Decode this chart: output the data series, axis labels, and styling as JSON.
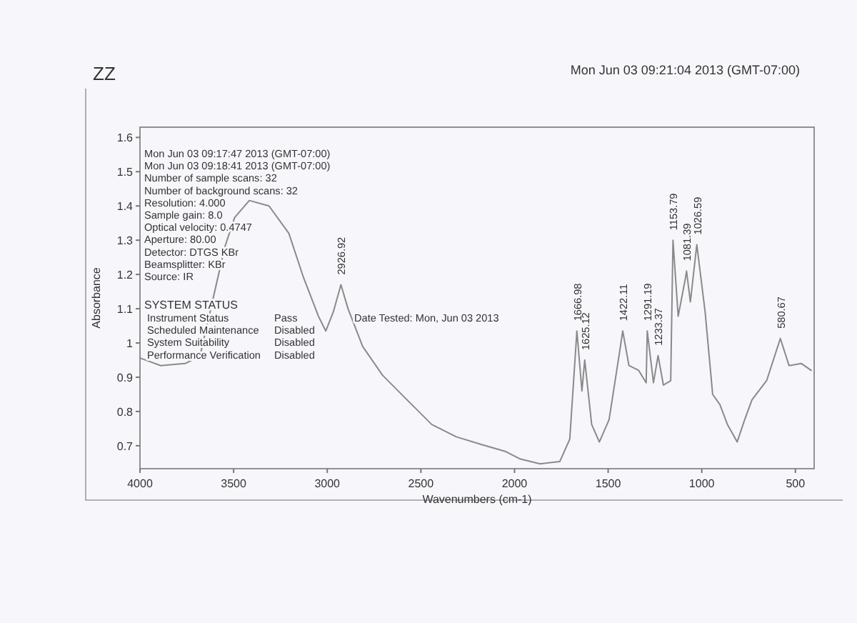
{
  "chart_data": {
    "type": "line",
    "title": "ZZ",
    "xlabel": "Wavenumbers (cm-1)",
    "ylabel": "Absorbance",
    "xlim": [
      4000,
      400
    ],
    "ylim": [
      0.633,
      1.63
    ],
    "xticks": [
      4000,
      3500,
      3000,
      2500,
      2000,
      1500,
      1000,
      500
    ],
    "yticks": [
      0.7,
      0.8,
      0.9,
      1.0,
      1.1,
      1.2,
      1.3,
      1.4,
      1.5,
      1.6
    ],
    "grid": false,
    "marker": "none",
    "line_style": "solid",
    "x": [
      4000,
      3889,
      3758,
      3679,
      3547,
      3495,
      3416,
      3311,
      3205,
      3126,
      3047,
      3008,
      2968,
      2926.92,
      2889,
      2811,
      2705,
      2574,
      2442,
      2311,
      2179,
      2047,
      1968,
      1863,
      1758,
      1705,
      1666.98,
      1640,
      1625.12,
      1588,
      1547,
      1495,
      1442,
      1422.11,
      1389,
      1337,
      1297,
      1291.19,
      1258,
      1233.37,
      1205,
      1166,
      1153.79,
      1126,
      1087,
      1081.39,
      1061,
      1026.59,
      982,
      942,
      903,
      863,
      811,
      771,
      732,
      653,
      580.67,
      534,
      468,
      416
    ],
    "series": [
      {
        "color": "#8a8a8a",
        "values": [
          0.956,
          0.934,
          0.94,
          0.963,
          1.28,
          1.366,
          1.416,
          1.4,
          1.32,
          1.19,
          1.078,
          1.035,
          1.09,
          1.17,
          1.1,
          0.99,
          0.906,
          0.834,
          0.762,
          0.726,
          0.704,
          0.683,
          0.661,
          0.647,
          0.654,
          0.719,
          1.035,
          0.86,
          0.95,
          0.762,
          0.711,
          0.776,
          0.963,
          1.035,
          0.934,
          0.92,
          0.884,
          1.035,
          0.884,
          0.963,
          0.877,
          0.89,
          1.3,
          1.078,
          1.19,
          1.21,
          1.12,
          1.287,
          1.09,
          0.85,
          0.82,
          0.762,
          0.711,
          0.776,
          0.834,
          0.891,
          1.013,
          0.934,
          0.94,
          0.92
        ]
      }
    ],
    "annotations": [
      "Mon Jun 03 09:21:04 2013 (GMT-07:00)",
      "Mon Jun 03 09:17:47 2013 (GMT-07:00)",
      "Mon Jun 03 09:18:41 2013 (GMT-07:00)",
      "Number of sample scans:  32",
      "Number of background scans:  32",
      "Resolution:  4.000",
      "Sample gain:  8.0",
      "Optical velocity:  0.4747",
      "Aperture:  80.00",
      "Detector:  DTGS KBr",
      "Beamsplitter:  KBr",
      "Source:  IR",
      "SYSTEM STATUS",
      "Instrument Status",
      "Pass",
      "Scheduled Maintenance",
      "Disabled",
      "System Suitability",
      "Disabled",
      "Performance Verification",
      "Disabled",
      "Date Tested: Mon, Jun 03 2013",
      {
        "text": "2926.92",
        "x": 2926.92,
        "y": 1.17
      },
      {
        "text": "1666.98",
        "x": 1666.98,
        "y": 1.035
      },
      {
        "text": "1625.12",
        "x": 1625.12,
        "y": 0.95
      },
      {
        "text": "1422.11",
        "x": 1422.11,
        "y": 1.035
      },
      {
        "text": "1291.19",
        "x": 1291.19,
        "y": 1.035
      },
      {
        "text": "1233.37",
        "x": 1233.37,
        "y": 0.963
      },
      {
        "text": "1153.79",
        "x": 1153.79,
        "y": 1.3
      },
      {
        "text": "1081.39",
        "x": 1081.39,
        "y": 1.21
      },
      {
        "text": "1026.59",
        "x": 1026.59,
        "y": 1.287
      },
      {
        "text": "580.67",
        "x": 580.67,
        "y": 1.013
      }
    ]
  }
}
